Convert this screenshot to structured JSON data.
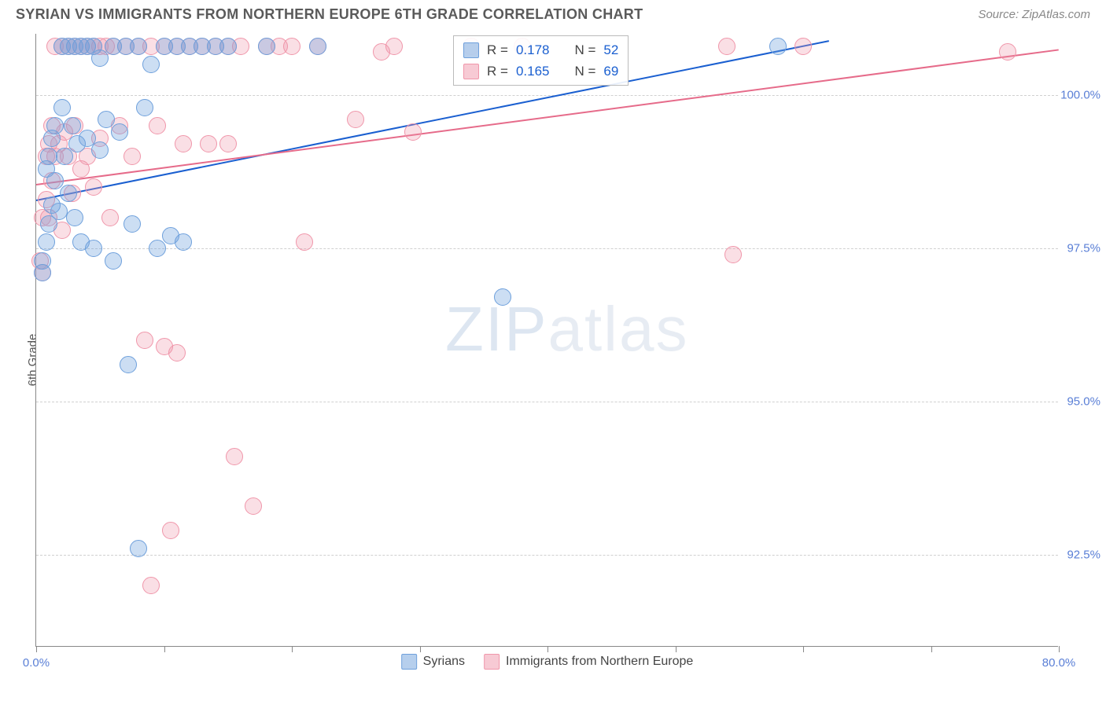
{
  "title": "SYRIAN VS IMMIGRANTS FROM NORTHERN EUROPE 6TH GRADE CORRELATION CHART",
  "source": "Source: ZipAtlas.com",
  "ylabel": "6th Grade",
  "watermark_a": "ZIP",
  "watermark_b": "atlas",
  "chart": {
    "type": "scatter",
    "background_color": "#ffffff",
    "grid_color": "#d0d0d0",
    "axis_color": "#888888",
    "label_color": "#5a7fd6",
    "xlim": [
      0,
      80
    ],
    "ylim": [
      91,
      101
    ],
    "xtick_positions": [
      0,
      10,
      20,
      30,
      40,
      50,
      60,
      70,
      80
    ],
    "xtick_labels": {
      "0": "0.0%",
      "80": "80.0%"
    },
    "ytick_positions": [
      92.5,
      95.0,
      97.5,
      100.0
    ],
    "ytick_labels": [
      "92.5%",
      "95.0%",
      "97.5%",
      "100.0%"
    ],
    "marker_radius": 11,
    "series": [
      {
        "name": "Syrians",
        "color_fill": "rgba(110,160,220,0.35)",
        "color_stroke": "#6ea0dc",
        "line_color": "#1a5fd0",
        "R": "0.178",
        "N": "52",
        "regression": {
          "x1": 0,
          "y1": 98.3,
          "x2": 62,
          "y2": 100.9
        },
        "points": [
          [
            0.5,
            97.1
          ],
          [
            0.5,
            97.3
          ],
          [
            0.8,
            97.6
          ],
          [
            0.8,
            98.8
          ],
          [
            1.0,
            99.0
          ],
          [
            1.0,
            97.9
          ],
          [
            1.2,
            98.2
          ],
          [
            1.2,
            99.3
          ],
          [
            1.5,
            98.6
          ],
          [
            1.5,
            99.5
          ],
          [
            1.8,
            98.1
          ],
          [
            2.0,
            99.8
          ],
          [
            2.0,
            100.8
          ],
          [
            2.2,
            99.0
          ],
          [
            2.5,
            100.8
          ],
          [
            2.5,
            98.4
          ],
          [
            2.8,
            99.5
          ],
          [
            3.0,
            100.8
          ],
          [
            3.0,
            98.0
          ],
          [
            3.2,
            99.2
          ],
          [
            3.5,
            100.8
          ],
          [
            3.5,
            97.6
          ],
          [
            4.0,
            100.8
          ],
          [
            4.0,
            99.3
          ],
          [
            4.5,
            100.8
          ],
          [
            4.5,
            97.5
          ],
          [
            5.0,
            100.6
          ],
          [
            5.0,
            99.1
          ],
          [
            5.5,
            99.6
          ],
          [
            6.0,
            100.8
          ],
          [
            6.0,
            97.3
          ],
          [
            6.5,
            99.4
          ],
          [
            7.0,
            100.8
          ],
          [
            7.2,
            95.6
          ],
          [
            7.5,
            97.9
          ],
          [
            8.0,
            100.8
          ],
          [
            8.0,
            92.6
          ],
          [
            8.5,
            99.8
          ],
          [
            9.0,
            100.5
          ],
          [
            9.5,
            97.5
          ],
          [
            10.0,
            100.8
          ],
          [
            10.5,
            97.7
          ],
          [
            11.0,
            100.8
          ],
          [
            11.5,
            97.6
          ],
          [
            12.0,
            100.8
          ],
          [
            13.0,
            100.8
          ],
          [
            14.0,
            100.8
          ],
          [
            15.0,
            100.8
          ],
          [
            18.0,
            100.8
          ],
          [
            22.0,
            100.8
          ],
          [
            36.5,
            96.7
          ],
          [
            58.0,
            100.8
          ]
        ]
      },
      {
        "name": "Immigrants from Northern Europe",
        "color_fill": "rgba(240,150,170,0.30)",
        "color_stroke": "#f096aa",
        "line_color": "#e66b8a",
        "R": "0.165",
        "N": "69",
        "regression": {
          "x1": 0,
          "y1": 98.55,
          "x2": 80,
          "y2": 100.75
        },
        "points": [
          [
            0.3,
            97.3
          ],
          [
            0.5,
            98.0
          ],
          [
            0.5,
            97.1
          ],
          [
            0.8,
            99.0
          ],
          [
            0.8,
            98.3
          ],
          [
            1.0,
            99.2
          ],
          [
            1.0,
            98.0
          ],
          [
            1.2,
            99.5
          ],
          [
            1.2,
            98.6
          ],
          [
            1.5,
            100.8
          ],
          [
            1.5,
            99.0
          ],
          [
            1.8,
            99.2
          ],
          [
            2.0,
            100.8
          ],
          [
            2.0,
            97.8
          ],
          [
            2.2,
            99.4
          ],
          [
            2.5,
            100.8
          ],
          [
            2.5,
            99.0
          ],
          [
            2.8,
            98.4
          ],
          [
            3.0,
            100.8
          ],
          [
            3.0,
            99.5
          ],
          [
            3.5,
            100.8
          ],
          [
            3.5,
            98.8
          ],
          [
            4.0,
            100.8
          ],
          [
            4.0,
            99.0
          ],
          [
            4.5,
            100.8
          ],
          [
            4.5,
            98.5
          ],
          [
            5.0,
            100.8
          ],
          [
            5.0,
            99.3
          ],
          [
            5.5,
            100.8
          ],
          [
            5.8,
            98.0
          ],
          [
            6.0,
            100.8
          ],
          [
            6.5,
            99.5
          ],
          [
            7.0,
            100.8
          ],
          [
            7.5,
            99.0
          ],
          [
            8.0,
            100.8
          ],
          [
            8.5,
            96.0
          ],
          [
            9.0,
            100.8
          ],
          [
            9.0,
            92.0
          ],
          [
            9.5,
            99.5
          ],
          [
            10.0,
            100.8
          ],
          [
            10.0,
            95.9
          ],
          [
            10.5,
            92.9
          ],
          [
            11.0,
            100.8
          ],
          [
            11.0,
            95.8
          ],
          [
            11.5,
            99.2
          ],
          [
            12.0,
            100.8
          ],
          [
            13.0,
            100.8
          ],
          [
            13.5,
            99.2
          ],
          [
            14.0,
            100.8
          ],
          [
            15.0,
            100.8
          ],
          [
            15.0,
            99.2
          ],
          [
            15.5,
            94.1
          ],
          [
            16.0,
            100.8
          ],
          [
            17.0,
            93.3
          ],
          [
            18.0,
            100.8
          ],
          [
            19.0,
            100.8
          ],
          [
            20.0,
            100.8
          ],
          [
            21.0,
            97.6
          ],
          [
            22.0,
            100.8
          ],
          [
            25.0,
            99.6
          ],
          [
            27.0,
            100.7
          ],
          [
            28.0,
            100.8
          ],
          [
            29.5,
            99.4
          ],
          [
            34.0,
            100.8
          ],
          [
            38.0,
            100.8
          ],
          [
            54.0,
            100.8
          ],
          [
            54.5,
            97.4
          ],
          [
            60.0,
            100.8
          ],
          [
            76.0,
            100.7
          ]
        ]
      }
    ]
  },
  "stats_labels": {
    "r_prefix": "R = ",
    "n_prefix": "N = "
  },
  "legend": {
    "series_a": "Syrians",
    "series_b": "Immigrants from Northern Europe"
  }
}
